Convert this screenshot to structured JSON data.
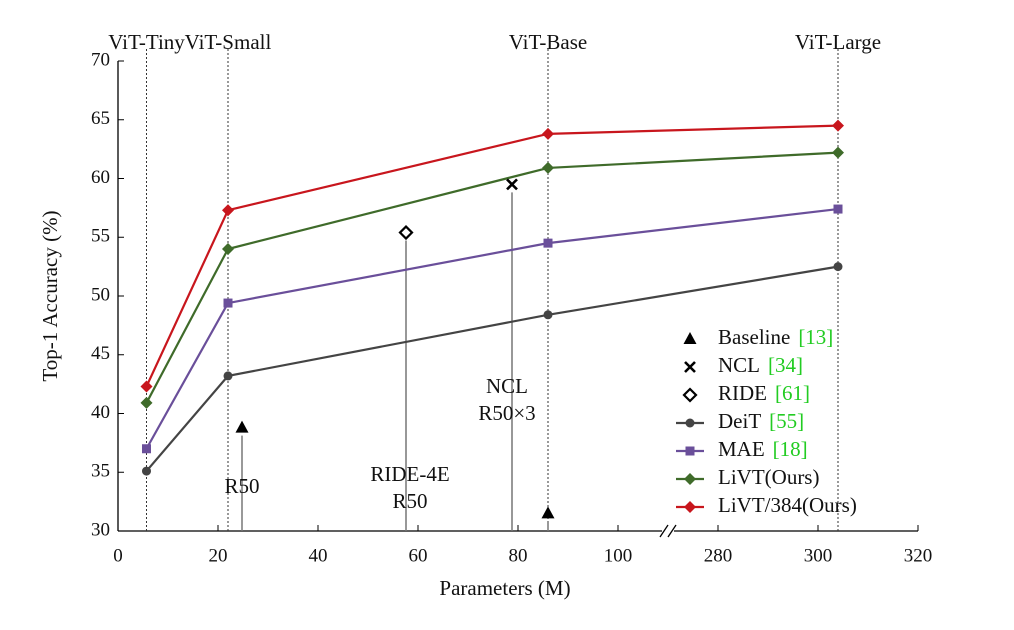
{
  "chart_data": {
    "type": "line",
    "xlabel": "Parameters (M)",
    "ylabel": "Top-1 Accuracy (%)",
    "xlim": [
      0,
      320
    ],
    "xbreak": [
      110,
      270
    ],
    "ylim": [
      30,
      70
    ],
    "xticks": [
      0,
      20,
      40,
      60,
      80,
      100,
      280,
      300,
      320
    ],
    "yticks": [
      30,
      35,
      40,
      45,
      50,
      55,
      60,
      65,
      70
    ],
    "models": [
      "ViT-Tiny",
      "ViT-Small",
      "ViT-Base",
      "ViT-Large"
    ],
    "x": [
      5.7,
      22,
      86,
      304
    ],
    "series": [
      {
        "name": "DeiT",
        "ref": "[55]",
        "color": "#444444",
        "marker": "circle",
        "values": [
          35.1,
          43.2,
          48.4,
          52.5
        ]
      },
      {
        "name": "MAE",
        "ref": "[18]",
        "color": "#6a4f9a",
        "marker": "square",
        "values": [
          37.0,
          49.4,
          54.5,
          57.4
        ]
      },
      {
        "name": "LiVT(Ours)",
        "color": "#3f6b2a",
        "marker": "diamond",
        "values": [
          40.9,
          54.0,
          60.9,
          62.2
        ]
      },
      {
        "name": "LiVT/384(Ours)",
        "color": "#c8161d",
        "marker": "diamond",
        "values": [
          42.3,
          57.3,
          63.8,
          64.5
        ]
      }
    ],
    "points": [
      {
        "name": "Baseline",
        "ref": "[13]",
        "marker": "triangle",
        "x": [
          24.8,
          86
        ],
        "values": [
          38.8,
          31.5
        ]
      },
      {
        "name": "NCL",
        "ref": "[34]",
        "marker": "cross",
        "x": [
          78.8
        ],
        "values": [
          59.5
        ]
      },
      {
        "name": "RIDE",
        "ref": "[61]",
        "marker": "open-diamond",
        "x": [
          57.6
        ],
        "values": [
          55.4
        ]
      }
    ],
    "annotations": [
      {
        "lines": [
          "R50"
        ]
      },
      {
        "lines": [
          "RIDE-4E",
          "R50"
        ]
      },
      {
        "lines": [
          "NCL",
          "R50×3"
        ]
      }
    ],
    "ref_color": "#22cc22"
  }
}
